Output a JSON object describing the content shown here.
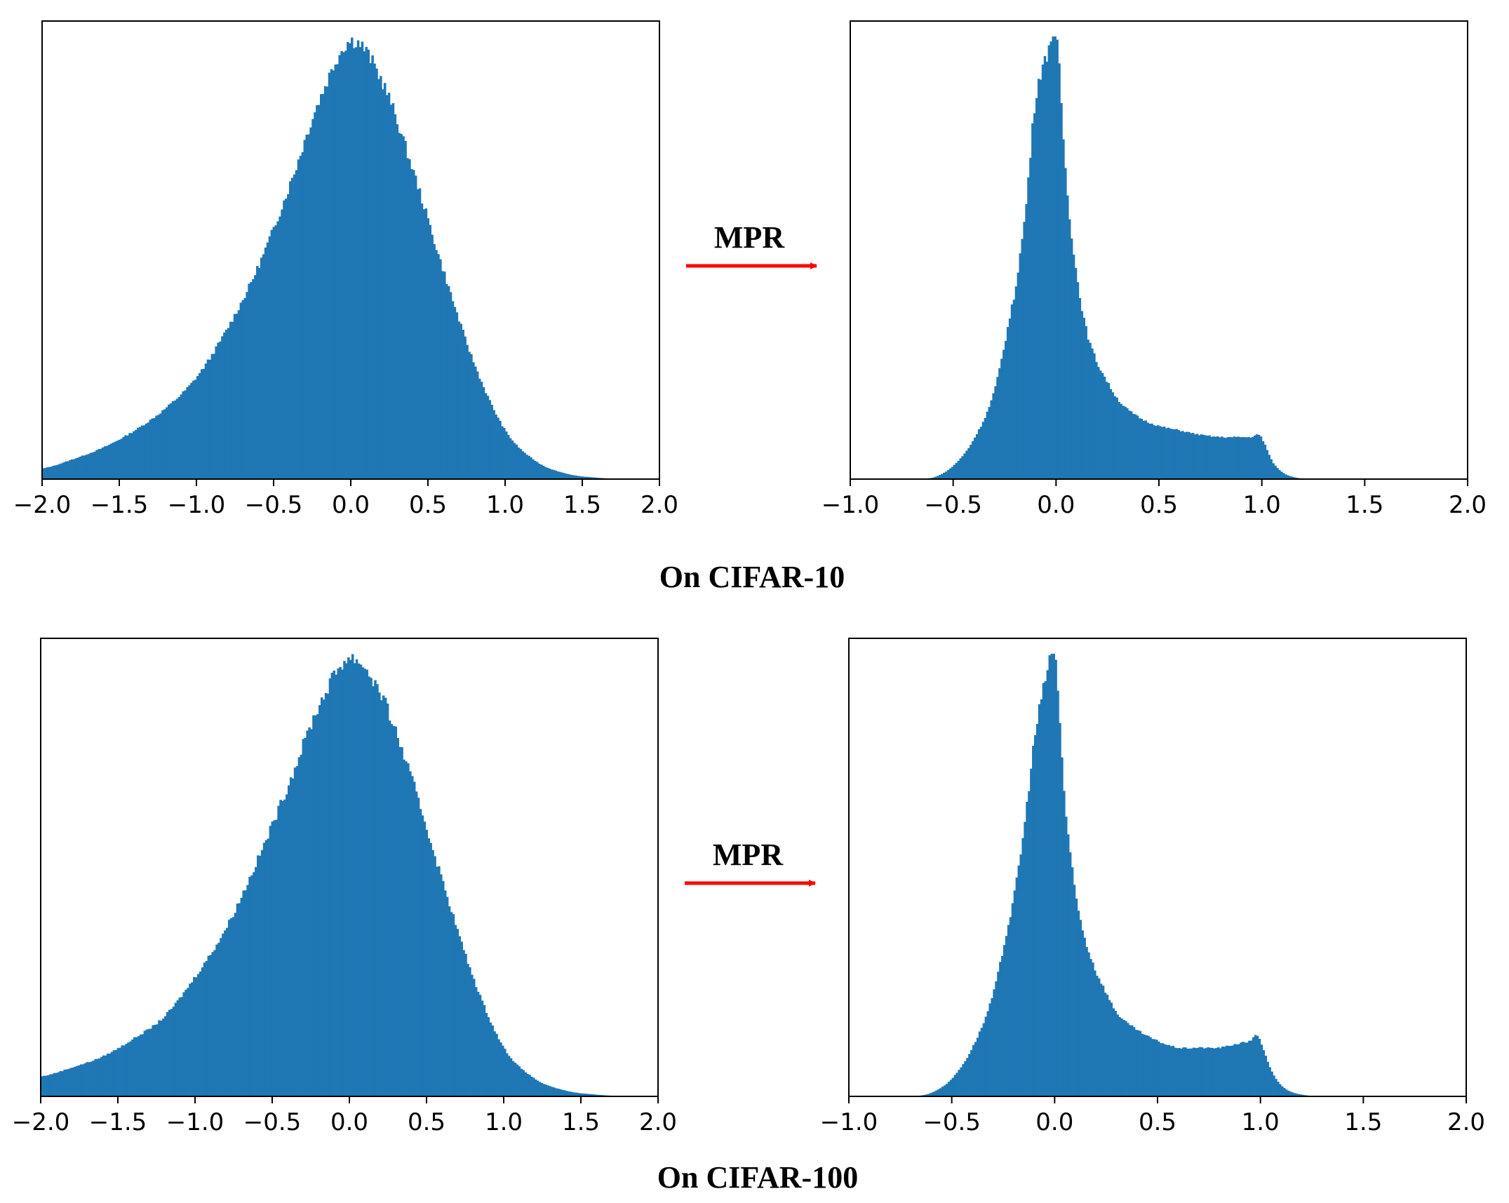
{
  "colors": {
    "bars": "#1f77b4",
    "arrow": "#ff0000",
    "axes": "#000000"
  },
  "panels": [
    {
      "caption": "On CIFAR-10",
      "arrow_label": "MPR",
      "before": {
        "xlim": [
          -2.0,
          2.0
        ],
        "ticks": [
          "−2.0",
          "−1.5",
          "−1.0",
          "−0.5",
          "0.0",
          "0.5",
          "1.0",
          "1.5",
          "2.0"
        ]
      },
      "after": {
        "xlim": [
          -1.0,
          2.0
        ],
        "ticks": [
          "−1.0",
          "−0.5",
          "0.0",
          "0.5",
          "1.0",
          "1.5",
          "2.0"
        ]
      }
    },
    {
      "caption": "On CIFAR-100",
      "arrow_label": "MPR",
      "before": {
        "xlim": [
          -2.0,
          2.0
        ],
        "ticks": [
          "−2.0",
          "−1.5",
          "−1.0",
          "−0.5",
          "0.0",
          "0.5",
          "1.0",
          "1.5",
          "2.0"
        ]
      },
      "after": {
        "xlim": [
          -1.0,
          2.0
        ],
        "ticks": [
          "−1.0",
          "−0.5",
          "0.0",
          "0.5",
          "1.0",
          "1.5",
          "2.0"
        ]
      }
    }
  ],
  "chart_data": [
    {
      "type": "bar",
      "dataset": "CIFAR-10",
      "stage": "before",
      "xlim": [
        -2.0,
        2.0
      ],
      "x": [
        -2.0,
        -1.8,
        -1.6,
        -1.4,
        -1.2,
        -1.0,
        -0.8,
        -0.6,
        -0.4,
        -0.2,
        0.0,
        0.2,
        0.4,
        0.6,
        0.8,
        1.0,
        1.2,
        1.4,
        1.6,
        1.8,
        2.0
      ],
      "values": [
        0.024,
        0.045,
        0.072,
        0.11,
        0.16,
        0.23,
        0.34,
        0.48,
        0.66,
        0.86,
        0.99,
        0.9,
        0.7,
        0.47,
        0.26,
        0.11,
        0.04,
        0.012,
        0.003,
        0.0,
        0.0
      ]
    },
    {
      "type": "bar",
      "dataset": "CIFAR-10",
      "stage": "after",
      "xlim": [
        -1.0,
        2.0
      ],
      "x": [
        -0.8,
        -0.6,
        -0.5,
        -0.4,
        -0.3,
        -0.2,
        -0.15,
        -0.1,
        -0.05,
        0.0,
        0.05,
        0.1,
        0.15,
        0.2,
        0.3,
        0.4,
        0.5,
        0.6,
        0.7,
        0.8,
        0.9,
        0.95,
        0.98,
        1.0,
        1.05,
        1.1,
        1.15,
        1.2,
        1.3
      ],
      "values": [
        0.0,
        0.003,
        0.03,
        0.09,
        0.2,
        0.42,
        0.6,
        0.86,
        0.95,
        1.0,
        0.67,
        0.46,
        0.33,
        0.26,
        0.18,
        0.14,
        0.12,
        0.11,
        0.1,
        0.095,
        0.095,
        0.095,
        0.1,
        0.09,
        0.04,
        0.015,
        0.005,
        0.001,
        0.0
      ]
    },
    {
      "type": "bar",
      "dataset": "CIFAR-100",
      "stage": "before",
      "xlim": [
        -2.0,
        2.0
      ],
      "x": [
        -2.0,
        -1.8,
        -1.6,
        -1.4,
        -1.2,
        -1.0,
        -0.8,
        -0.6,
        -0.4,
        -0.2,
        0.0,
        0.2,
        0.4,
        0.6,
        0.8,
        1.0,
        1.2,
        1.4,
        1.6,
        1.8,
        2.0
      ],
      "values": [
        0.045,
        0.065,
        0.09,
        0.13,
        0.18,
        0.27,
        0.38,
        0.53,
        0.7,
        0.88,
        0.99,
        0.91,
        0.72,
        0.49,
        0.27,
        0.11,
        0.04,
        0.013,
        0.004,
        0.0,
        0.0
      ]
    },
    {
      "type": "bar",
      "dataset": "CIFAR-100",
      "stage": "after",
      "xlim": [
        -1.0,
        2.0
      ],
      "x": [
        -0.8,
        -0.7,
        -0.6,
        -0.5,
        -0.4,
        -0.3,
        -0.2,
        -0.15,
        -0.1,
        -0.05,
        0.0,
        0.05,
        0.1,
        0.15,
        0.2,
        0.3,
        0.4,
        0.5,
        0.6,
        0.7,
        0.8,
        0.9,
        0.95,
        0.98,
        1.0,
        1.05,
        1.1,
        1.15,
        1.2,
        1.25,
        1.3
      ],
      "values": [
        0.0,
        0.0,
        0.008,
        0.04,
        0.11,
        0.23,
        0.44,
        0.6,
        0.8,
        0.93,
        1.0,
        0.66,
        0.46,
        0.35,
        0.28,
        0.19,
        0.15,
        0.125,
        0.11,
        0.11,
        0.11,
        0.12,
        0.125,
        0.14,
        0.12,
        0.06,
        0.025,
        0.01,
        0.004,
        0.001,
        0.0
      ]
    }
  ]
}
